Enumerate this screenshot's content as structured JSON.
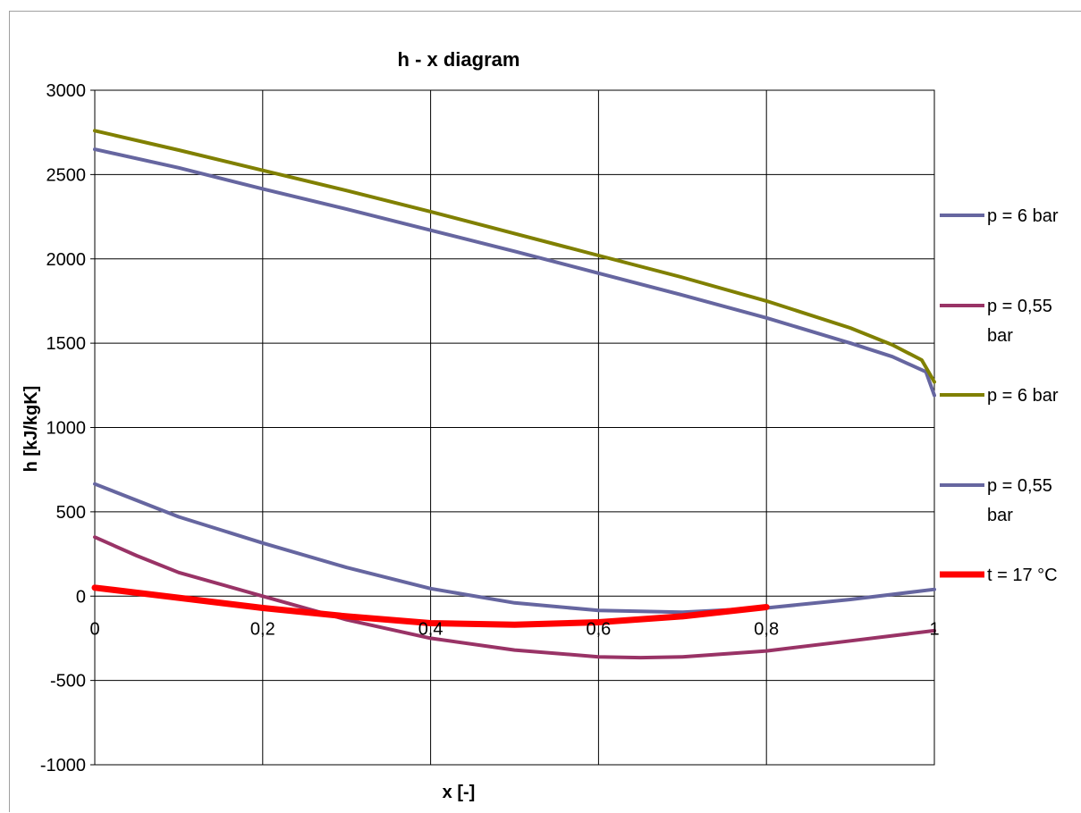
{
  "chart_data": {
    "type": "line",
    "title": "h - x diagram",
    "xlabel": "x [-]",
    "ylabel": "h [kJ/kgK]",
    "xlim": [
      0,
      1
    ],
    "ylim": [
      -1000,
      3000
    ],
    "x_ticks": [
      "0",
      "0,2",
      "0,4",
      "0,6",
      "0,8",
      "1"
    ],
    "y_ticks": [
      "3000",
      "2500",
      "2000",
      "1500",
      "1000",
      "500",
      "0",
      "-500",
      "-1000"
    ],
    "grid": true,
    "legend_position": "right",
    "series": [
      {
        "name": "p = 6 bar",
        "color": "#6666a0",
        "stroke": 4,
        "points": [
          [
            0,
            2650
          ],
          [
            0.1,
            2540
          ],
          [
            0.2,
            2415
          ],
          [
            0.3,
            2295
          ],
          [
            0.4,
            2170
          ],
          [
            0.5,
            2045
          ],
          [
            0.6,
            1915
          ],
          [
            0.7,
            1785
          ],
          [
            0.8,
            1650
          ],
          [
            0.9,
            1500
          ],
          [
            0.95,
            1420
          ],
          [
            0.99,
            1330
          ],
          [
            1.0,
            1190
          ]
        ]
      },
      {
        "name": "p = 0,55 bar",
        "color": "#993366",
        "stroke": 4,
        "points": [
          [
            0,
            350
          ],
          [
            0.05,
            240
          ],
          [
            0.1,
            140
          ],
          [
            0.2,
            0
          ],
          [
            0.3,
            -140
          ],
          [
            0.4,
            -250
          ],
          [
            0.5,
            -320
          ],
          [
            0.6,
            -360
          ],
          [
            0.65,
            -365
          ],
          [
            0.7,
            -360
          ],
          [
            0.8,
            -325
          ],
          [
            0.9,
            -265
          ],
          [
            1.0,
            -205
          ]
        ]
      },
      {
        "name": "p = 6 bar",
        "color": "#808000",
        "stroke": 4,
        "points": [
          [
            0,
            2760
          ],
          [
            0.1,
            2645
          ],
          [
            0.2,
            2525
          ],
          [
            0.3,
            2405
          ],
          [
            0.4,
            2280
          ],
          [
            0.5,
            2150
          ],
          [
            0.6,
            2020
          ],
          [
            0.7,
            1890
          ],
          [
            0.8,
            1750
          ],
          [
            0.9,
            1590
          ],
          [
            0.95,
            1490
          ],
          [
            0.985,
            1400
          ],
          [
            1.0,
            1270
          ]
        ]
      },
      {
        "name": "p = 0,55 bar",
        "color": "#6666a0",
        "stroke": 4,
        "points": [
          [
            0,
            665
          ],
          [
            0.1,
            470
          ],
          [
            0.2,
            315
          ],
          [
            0.3,
            170
          ],
          [
            0.4,
            45
          ],
          [
            0.5,
            -40
          ],
          [
            0.6,
            -85
          ],
          [
            0.7,
            -95
          ],
          [
            0.8,
            -70
          ],
          [
            0.9,
            -20
          ],
          [
            1.0,
            40
          ]
        ]
      },
      {
        "name": "t = 17 °C",
        "color": "#ff0000",
        "stroke": 7,
        "points": [
          [
            0,
            50
          ],
          [
            0.1,
            -10
          ],
          [
            0.2,
            -70
          ],
          [
            0.3,
            -120
          ],
          [
            0.4,
            -160
          ],
          [
            0.5,
            -170
          ],
          [
            0.6,
            -155
          ],
          [
            0.7,
            -120
          ],
          [
            0.8,
            -65
          ]
        ]
      }
    ],
    "legend": [
      {
        "lines": [
          "p = 6 bar"
        ],
        "color": "#6666a0",
        "stroke": 4
      },
      {
        "lines": [
          "p = 0,55",
          "bar"
        ],
        "color": "#993366",
        "stroke": 4
      },
      {
        "lines": [
          "p = 6 bar"
        ],
        "color": "#808000",
        "stroke": 4
      },
      {
        "lines": [
          "p = 0,55",
          "bar"
        ],
        "color": "#6666a0",
        "stroke": 4
      },
      {
        "lines": [
          "t = 17 °C"
        ],
        "color": "#ff0000",
        "stroke": 7
      }
    ]
  }
}
